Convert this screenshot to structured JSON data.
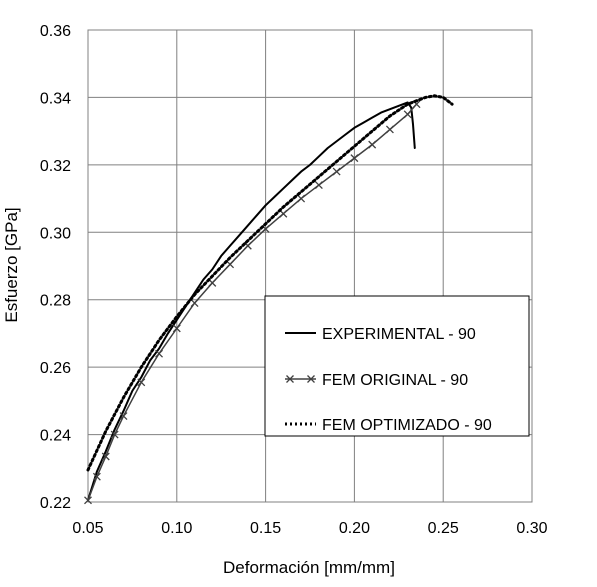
{
  "chart_data": {
    "type": "line",
    "title": "",
    "xlabel": "Deformación [mm/mm]",
    "ylabel": "Esfuerzo [GPa]",
    "xlim": [
      0.05,
      0.3
    ],
    "ylim": [
      0.22,
      0.36
    ],
    "x_ticks": [
      "0.05",
      "0.10",
      "0.15",
      "0.20",
      "0.25",
      "0.30"
    ],
    "y_ticks": [
      "0.22",
      "0.24",
      "0.26",
      "0.28",
      "0.30",
      "0.32",
      "0.34",
      "0.36"
    ],
    "grid": true,
    "legend_position": "center-right",
    "colors": {
      "experimental": "#000000",
      "original": "#404040",
      "optimizado": "#000000",
      "grid": "#808080"
    },
    "series": [
      {
        "name": "EXPERIMENTAL - 90",
        "style": "solid",
        "x": [
          0.05,
          0.055,
          0.06,
          0.065,
          0.07,
          0.075,
          0.08,
          0.085,
          0.09,
          0.095,
          0.1,
          0.105,
          0.11,
          0.115,
          0.12,
          0.125,
          0.13,
          0.135,
          0.14,
          0.145,
          0.15,
          0.155,
          0.16,
          0.165,
          0.17,
          0.175,
          0.18,
          0.185,
          0.19,
          0.195,
          0.2,
          0.205,
          0.21,
          0.215,
          0.22,
          0.225,
          0.23,
          0.232,
          0.233,
          0.234
        ],
        "y": [
          0.2205,
          0.229,
          0.235,
          0.2415,
          0.247,
          0.253,
          0.257,
          0.262,
          0.2655,
          0.27,
          0.274,
          0.278,
          0.282,
          0.286,
          0.289,
          0.293,
          0.296,
          0.299,
          0.302,
          0.305,
          0.308,
          0.3105,
          0.313,
          0.3155,
          0.318,
          0.32,
          0.3225,
          0.325,
          0.327,
          0.329,
          0.331,
          0.3325,
          0.334,
          0.3355,
          0.3365,
          0.3375,
          0.3385,
          0.337,
          0.332,
          0.325
        ]
      },
      {
        "name": "FEM ORIGINAL - 90",
        "style": "line-marker-x",
        "x": [
          0.05,
          0.055,
          0.06,
          0.065,
          0.07,
          0.08,
          0.09,
          0.1,
          0.11,
          0.12,
          0.13,
          0.14,
          0.15,
          0.16,
          0.17,
          0.18,
          0.19,
          0.2,
          0.21,
          0.22,
          0.23,
          0.235
        ],
        "y": [
          0.2205,
          0.2275,
          0.2335,
          0.24,
          0.2455,
          0.2555,
          0.264,
          0.2715,
          0.279,
          0.285,
          0.2905,
          0.296,
          0.301,
          0.3055,
          0.31,
          0.314,
          0.318,
          0.322,
          0.326,
          0.3305,
          0.335,
          0.338
        ]
      },
      {
        "name": "FEM OPTIMIZADO - 90",
        "style": "dotted",
        "x": [
          0.05,
          0.06,
          0.07,
          0.08,
          0.09,
          0.1,
          0.11,
          0.12,
          0.13,
          0.14,
          0.15,
          0.16,
          0.17,
          0.18,
          0.19,
          0.2,
          0.21,
          0.22,
          0.23,
          0.24,
          0.245,
          0.25,
          0.255
        ],
        "y": [
          0.2295,
          0.241,
          0.251,
          0.26,
          0.268,
          0.275,
          0.2815,
          0.287,
          0.2925,
          0.2975,
          0.3025,
          0.3075,
          0.312,
          0.3165,
          0.321,
          0.3255,
          0.33,
          0.3345,
          0.338,
          0.34,
          0.3405,
          0.34,
          0.338
        ]
      }
    ]
  }
}
